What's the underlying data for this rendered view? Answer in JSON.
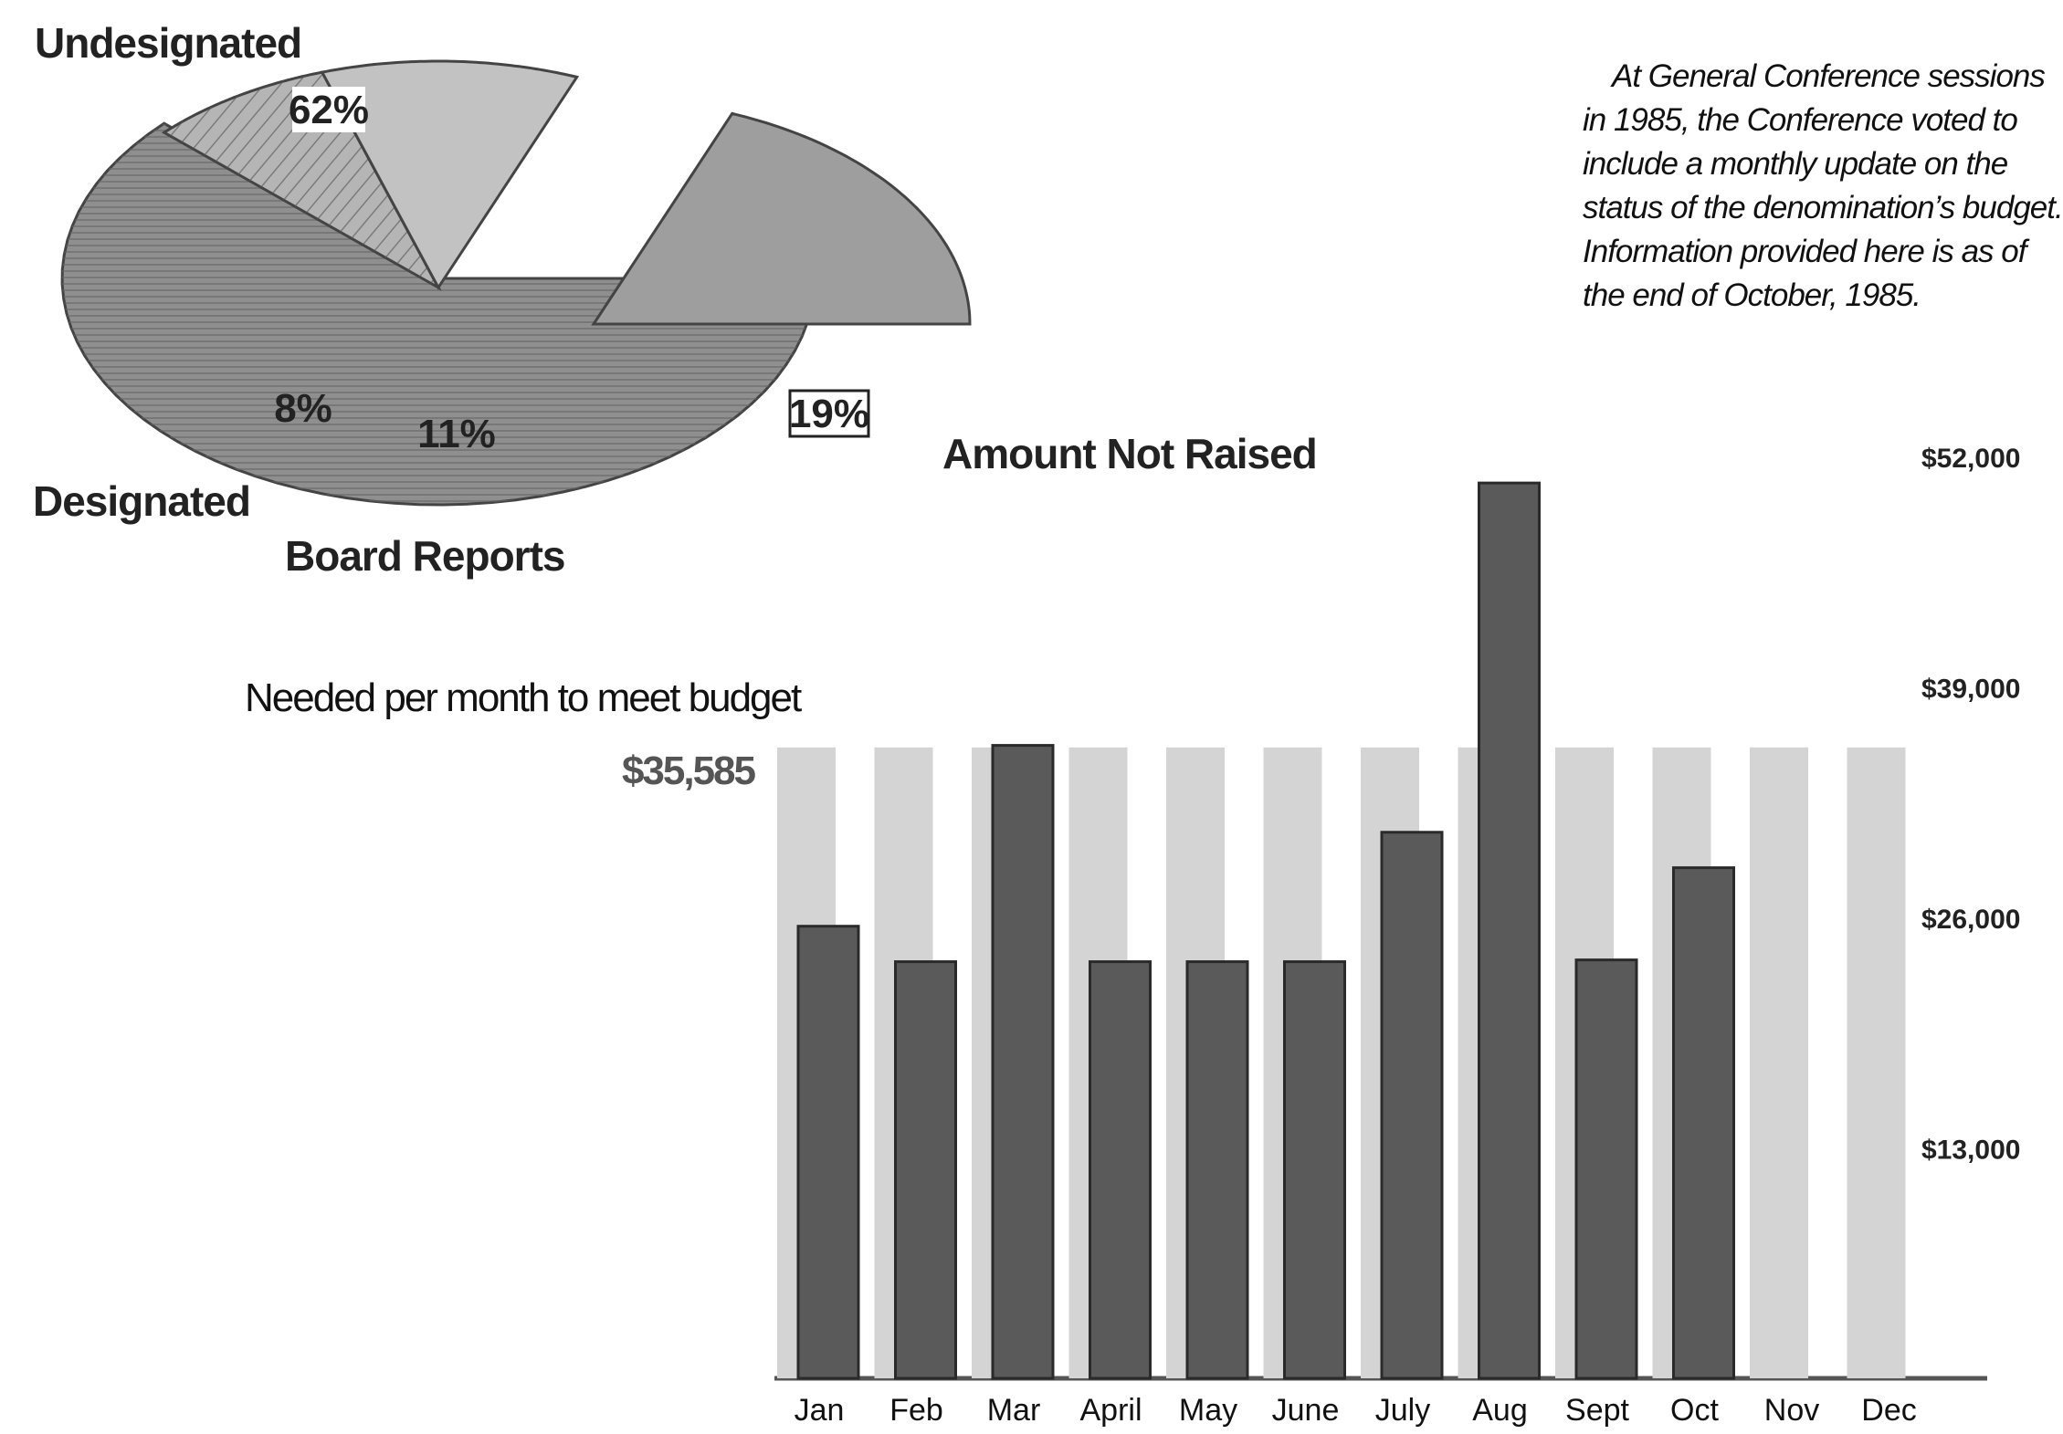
{
  "note": {
    "lines": [
      "At General Conference sessions",
      "in 1985, the Conference voted to",
      "include a monthly update on the",
      "status of the denomination’s budget.",
      "Information provided here is as of",
      "the end of October, 1985."
    ]
  },
  "colors": {
    "budget_bar": "#d4d4d4",
    "raised_bar": "#5a5a5a",
    "pie_undesignated": "#8f8f8f",
    "pie_designated": "#b5b5b5",
    "pie_board_reports": "#c2c2c2",
    "pie_not_raised": "#9e9e9e"
  },
  "chart_data": [
    {
      "type": "pie",
      "slices": [
        {
          "label": "Undesignated",
          "value": 62,
          "display": "62%"
        },
        {
          "label": "Designated",
          "value": 8,
          "display": "8%"
        },
        {
          "label": "Board Reports",
          "value": 11,
          "display": "11%"
        },
        {
          "label": "Amount Not Raised",
          "value": 19,
          "display": "19%"
        }
      ]
    },
    {
      "type": "bar",
      "title": "",
      "annotation_label": "Needed per month to meet budget",
      "annotation_value": "$35,585",
      "budget_per_month": 35585,
      "categories": [
        "Jan",
        "Feb",
        "Mar",
        "April",
        "May",
        "June",
        "July",
        "Aug",
        "Sept",
        "Oct",
        "Nov",
        "Dec"
      ],
      "series": [
        {
          "values": [
            35585,
            35585,
            35585,
            35585,
            35585,
            35585,
            35585,
            35585,
            35585,
            35585,
            35585,
            35585
          ]
        },
        {
          "values": [
            25500,
            23500,
            35700,
            23500,
            23500,
            23500,
            30800,
            50500,
            23600,
            28800,
            null,
            null
          ]
        }
      ],
      "yticks": [
        "$13,000",
        "$26,000",
        "$39,000",
        "$52,000"
      ],
      "ylim": [
        0,
        52000
      ],
      "grid": false
    }
  ]
}
